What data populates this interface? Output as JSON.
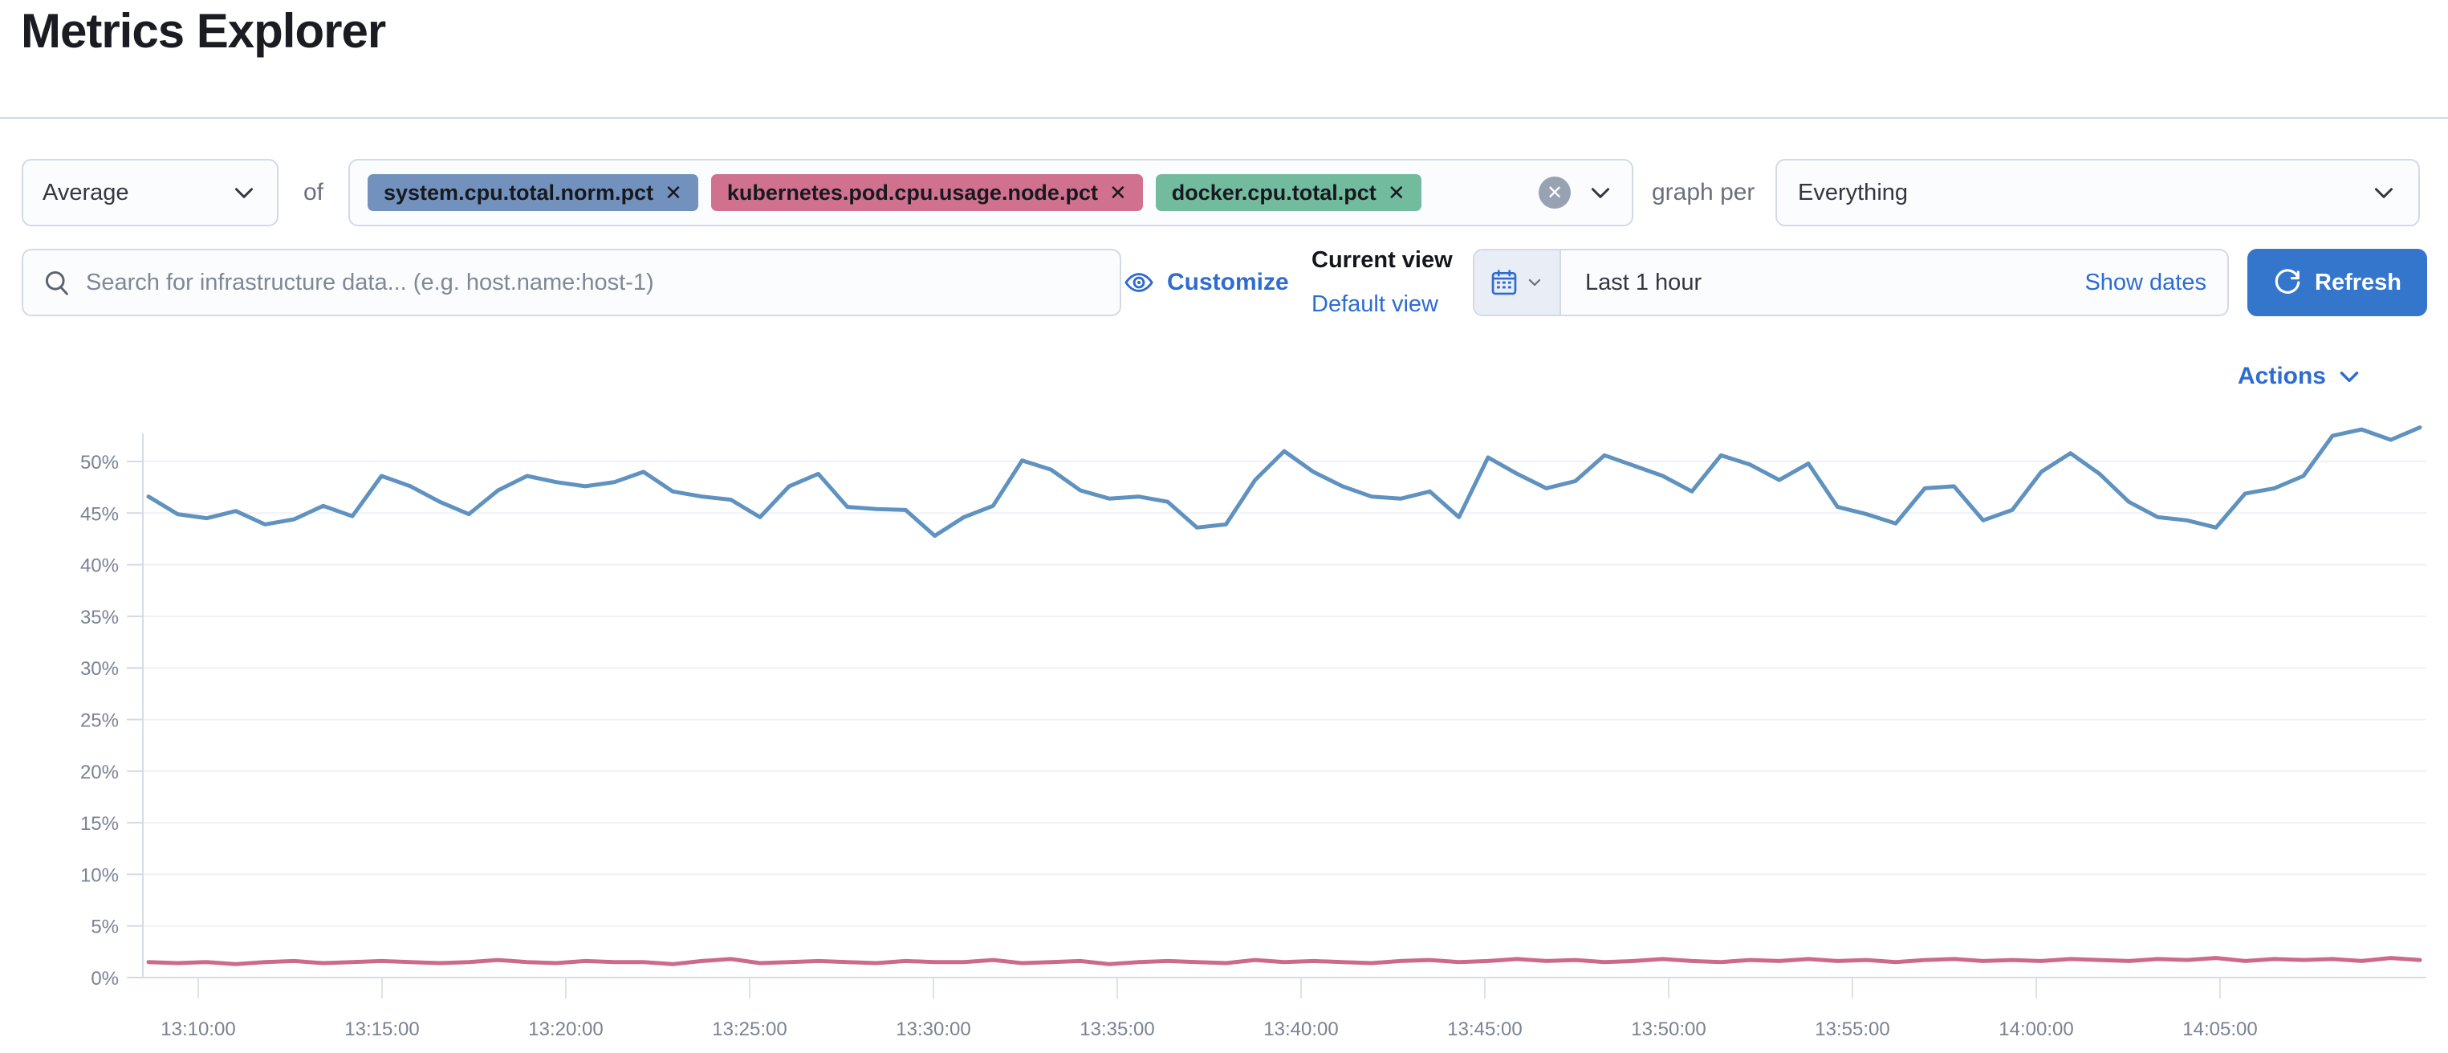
{
  "page": {
    "title": "Metrics Explorer"
  },
  "colors": {
    "accent_link": "#2e6bd2",
    "refresh_button": "#3476cc",
    "border": "#d3dae6",
    "muted_text": "#69707d"
  },
  "toolbar": {
    "aggregation": {
      "value": "Average"
    },
    "of_label": "of",
    "metrics": [
      {
        "label": "system.cpu.total.norm.pct",
        "remove_icon": "✕",
        "color": "#7292bd"
      },
      {
        "label": "kubernetes.pod.cpu.usage.node.pct",
        "remove_icon": "✕",
        "color": "#d0718f"
      },
      {
        "label": "docker.cpu.total.pct",
        "remove_icon": "✕",
        "color": "#73bb9e"
      }
    ],
    "clear_icon": "✕",
    "graph_per_label": "graph per",
    "graph_per": {
      "value": "Everything"
    }
  },
  "search": {
    "placeholder": "Search for infrastructure data... (e.g. host.name:host-1)"
  },
  "customize_label": "Customize",
  "view": {
    "current": "Current view",
    "default_link": "Default view"
  },
  "timepicker": {
    "value": "Last 1 hour",
    "show_dates_label": "Show dates",
    "refresh_label": "Refresh"
  },
  "actions_label": "Actions",
  "chart_data": {
    "type": "line",
    "title": "",
    "xlabel": "",
    "ylabel": "",
    "ylim": [
      0,
      53.5
    ],
    "grid": true,
    "legend": "none",
    "y_ticks": [
      {
        "value": 0,
        "label": "0%"
      },
      {
        "value": 5,
        "label": "5%"
      },
      {
        "value": 10,
        "label": "10%"
      },
      {
        "value": 15,
        "label": "15%"
      },
      {
        "value": 20,
        "label": "20%"
      },
      {
        "value": 25,
        "label": "25%"
      },
      {
        "value": 30,
        "label": "30%"
      },
      {
        "value": 35,
        "label": "35%"
      },
      {
        "value": 40,
        "label": "40%"
      },
      {
        "value": 45,
        "label": "45%"
      },
      {
        "value": 50,
        "label": "50%"
      }
    ],
    "x_ticks": [
      "13:10:00",
      "13:15:00",
      "13:20:00",
      "13:25:00",
      "13:30:00",
      "13:35:00",
      "13:40:00",
      "13:45:00",
      "13:50:00",
      "13:55:00",
      "14:00:00",
      "14:05:00"
    ],
    "series": [
      {
        "name": "system.cpu.total.norm.pct (Average)",
        "color": "#6092c0",
        "unit": "%",
        "values": [
          46.6,
          44.9,
          44.5,
          45.2,
          43.9,
          44.4,
          45.7,
          44.7,
          48.6,
          47.6,
          46.1,
          44.9,
          47.2,
          48.6,
          48.0,
          47.6,
          48.0,
          49.0,
          47.1,
          46.6,
          46.3,
          44.6,
          47.6,
          48.8,
          45.6,
          45.4,
          45.3,
          42.8,
          44.6,
          45.7,
          50.1,
          49.2,
          47.2,
          46.4,
          46.6,
          46.1,
          43.6,
          43.9,
          48.2,
          51.0,
          49.0,
          47.6,
          46.6,
          46.4,
          47.1,
          44.6,
          50.4,
          48.8,
          47.4,
          48.1,
          50.6,
          49.6,
          48.6,
          47.1,
          50.6,
          49.7,
          48.2,
          49.8,
          45.6,
          44.9,
          44.0,
          47.4,
          47.6,
          44.3,
          45.3,
          49.0,
          50.8,
          48.8,
          46.1,
          44.6,
          44.3,
          43.6,
          46.9,
          47.4,
          48.6,
          52.5,
          53.1,
          52.1,
          53.3
        ]
      },
      {
        "name": "kubernetes.pod.cpu.usage.node.pct (Average)",
        "color": "#cc6a8b",
        "unit": "%",
        "values": [
          1.5,
          1.4,
          1.5,
          1.3,
          1.5,
          1.6,
          1.4,
          1.5,
          1.6,
          1.5,
          1.4,
          1.5,
          1.7,
          1.5,
          1.4,
          1.6,
          1.5,
          1.5,
          1.3,
          1.6,
          1.8,
          1.4,
          1.5,
          1.6,
          1.5,
          1.4,
          1.6,
          1.5,
          1.5,
          1.7,
          1.4,
          1.5,
          1.6,
          1.3,
          1.5,
          1.6,
          1.5,
          1.4,
          1.7,
          1.5,
          1.6,
          1.5,
          1.4,
          1.6,
          1.7,
          1.5,
          1.6,
          1.8,
          1.6,
          1.7,
          1.5,
          1.6,
          1.8,
          1.6,
          1.5,
          1.7,
          1.6,
          1.8,
          1.6,
          1.7,
          1.5,
          1.7,
          1.8,
          1.6,
          1.7,
          1.6,
          1.8,
          1.7,
          1.6,
          1.8,
          1.7,
          1.9,
          1.6,
          1.8,
          1.7,
          1.8,
          1.6,
          1.9,
          1.7
        ]
      }
    ]
  }
}
